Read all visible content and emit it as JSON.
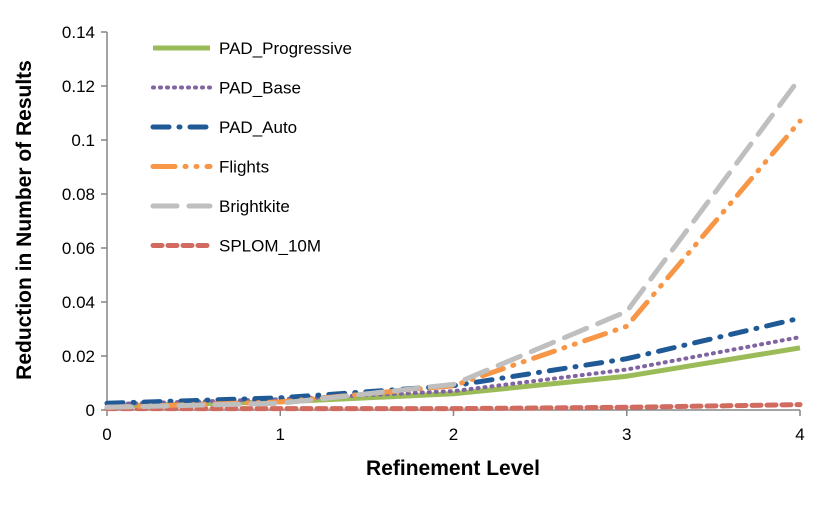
{
  "chart_data": {
    "type": "line",
    "title": "",
    "xlabel": "Refinement Level",
    "ylabel": "Reduction in Number of Results",
    "x": [
      0,
      1,
      2,
      3,
      4
    ],
    "xlim": [
      0,
      4
    ],
    "ylim": [
      0,
      0.14
    ],
    "xticks": [
      "0",
      "1",
      "2",
      "3",
      "4"
    ],
    "yticks": [
      "0",
      "0.02",
      "0.04",
      "0.06",
      "0.08",
      "0.1",
      "0.12",
      "0.14"
    ],
    "grid": false,
    "legend_placement": "top-left",
    "series": [
      {
        "name": "PAD_Progressive",
        "color": "#9bbb59",
        "dash": "solid",
        "values": [
          0.0015,
          0.003,
          0.006,
          0.0125,
          0.023
        ]
      },
      {
        "name": "PAD_Base",
        "color": "#8064a2",
        "dash": "dotted",
        "values": [
          0.0022,
          0.004,
          0.007,
          0.015,
          0.027
        ]
      },
      {
        "name": "PAD_Auto",
        "color": "#1f5a96",
        "dash": "dash-dot",
        "values": [
          0.0025,
          0.0045,
          0.009,
          0.019,
          0.034
        ]
      },
      {
        "name": "Flights",
        "color": "#f79646",
        "dash": "long-dash-dot-dot",
        "values": [
          0.001,
          0.003,
          0.009,
          0.031,
          0.107
        ]
      },
      {
        "name": "Brightkite",
        "color": "#bfbfbf",
        "dash": "long-dash",
        "values": [
          0.001,
          0.0025,
          0.0095,
          0.0365,
          0.123
        ]
      },
      {
        "name": "SPLOM_10M",
        "color": "#d16b5f",
        "dash": "dashed",
        "values": [
          0.0005,
          0.0005,
          0.0005,
          0.001,
          0.002
        ]
      }
    ]
  }
}
